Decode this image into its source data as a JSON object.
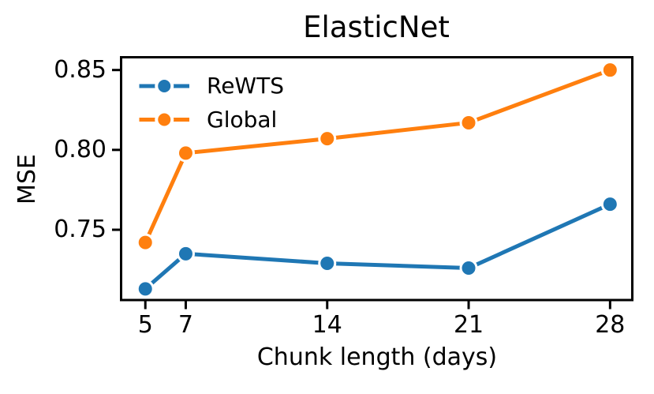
{
  "chart_data": {
    "type": "line",
    "title": "ElasticNet",
    "xlabel": "Chunk length (days)",
    "ylabel": "MSE",
    "x": [
      5,
      7,
      14,
      21,
      28
    ],
    "series": [
      {
        "name": "ReWTS",
        "color": "#1f77b4",
        "values": [
          0.713,
          0.735,
          0.729,
          0.726,
          0.766
        ]
      },
      {
        "name": "Global",
        "color": "#ff7f0e",
        "values": [
          0.742,
          0.798,
          0.807,
          0.817,
          0.85
        ]
      }
    ],
    "xlim": [
      3.8,
      29.1
    ],
    "ylim": [
      0.706,
      0.858
    ],
    "xticks": {
      "values": [
        5,
        7,
        14,
        21,
        28
      ],
      "labels": [
        "5",
        "7",
        "14",
        "21",
        "28"
      ]
    },
    "yticks": {
      "values": [
        0.75,
        0.8,
        0.85
      ],
      "labels": [
        "0.75",
        "0.80",
        "0.85"
      ]
    },
    "legend": {
      "position": "upper-left",
      "frame": false,
      "entries": [
        "ReWTS",
        "Global"
      ]
    },
    "grid": false,
    "marker": "circle",
    "marker_edge_color": "#ffffff",
    "axis_color": "#000000",
    "background_color": "#ffffff"
  }
}
